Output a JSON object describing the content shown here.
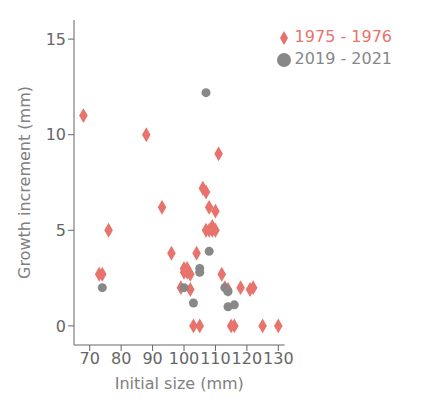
{
  "chart_data": {
    "type": "scatter",
    "xlabel": "Initial size (mm)",
    "ylabel": "Growth increment (mm)",
    "series": [
      {
        "name": "1975 - 1976",
        "color": "#E8736C",
        "marker": "diamond",
        "x": [
          68,
          73,
          74,
          76,
          88,
          93,
          96,
          99,
          100,
          100,
          101,
          101,
          102,
          102,
          103,
          104,
          105,
          106,
          107,
          107,
          108,
          108,
          109,
          109,
          110,
          110,
          111,
          112,
          113,
          114,
          115,
          116,
          118,
          121,
          122,
          125,
          130
        ],
        "values": [
          11,
          2.7,
          2.7,
          5,
          10,
          6.2,
          3.8,
          2,
          3,
          2.8,
          3,
          2.8,
          1.9,
          2.7,
          0,
          3.8,
          0,
          7.2,
          7,
          5,
          6.2,
          5,
          5.2,
          5,
          6,
          5,
          9,
          2.7,
          2,
          1.9,
          0,
          0,
          2,
          1.9,
          2,
          0,
          0
        ]
      },
      {
        "name": "2019 - 2021",
        "color": "#888888",
        "marker": "circle",
        "x": [
          74,
          100,
          103,
          107,
          108,
          113,
          114,
          114,
          116,
          105,
          105
        ],
        "values": [
          2,
          2,
          1.2,
          12.2,
          3.9,
          2,
          1.8,
          1,
          1.1,
          3,
          2.8
        ]
      }
    ],
    "xlim": [
      65,
      132
    ],
    "xticks": [
      70,
      80,
      90,
      100,
      110,
      120,
      130
    ],
    "ylim": [
      -1,
      16
    ],
    "yticks": [
      0,
      5,
      10,
      15
    ],
    "grid": false,
    "legend": "upper right"
  }
}
